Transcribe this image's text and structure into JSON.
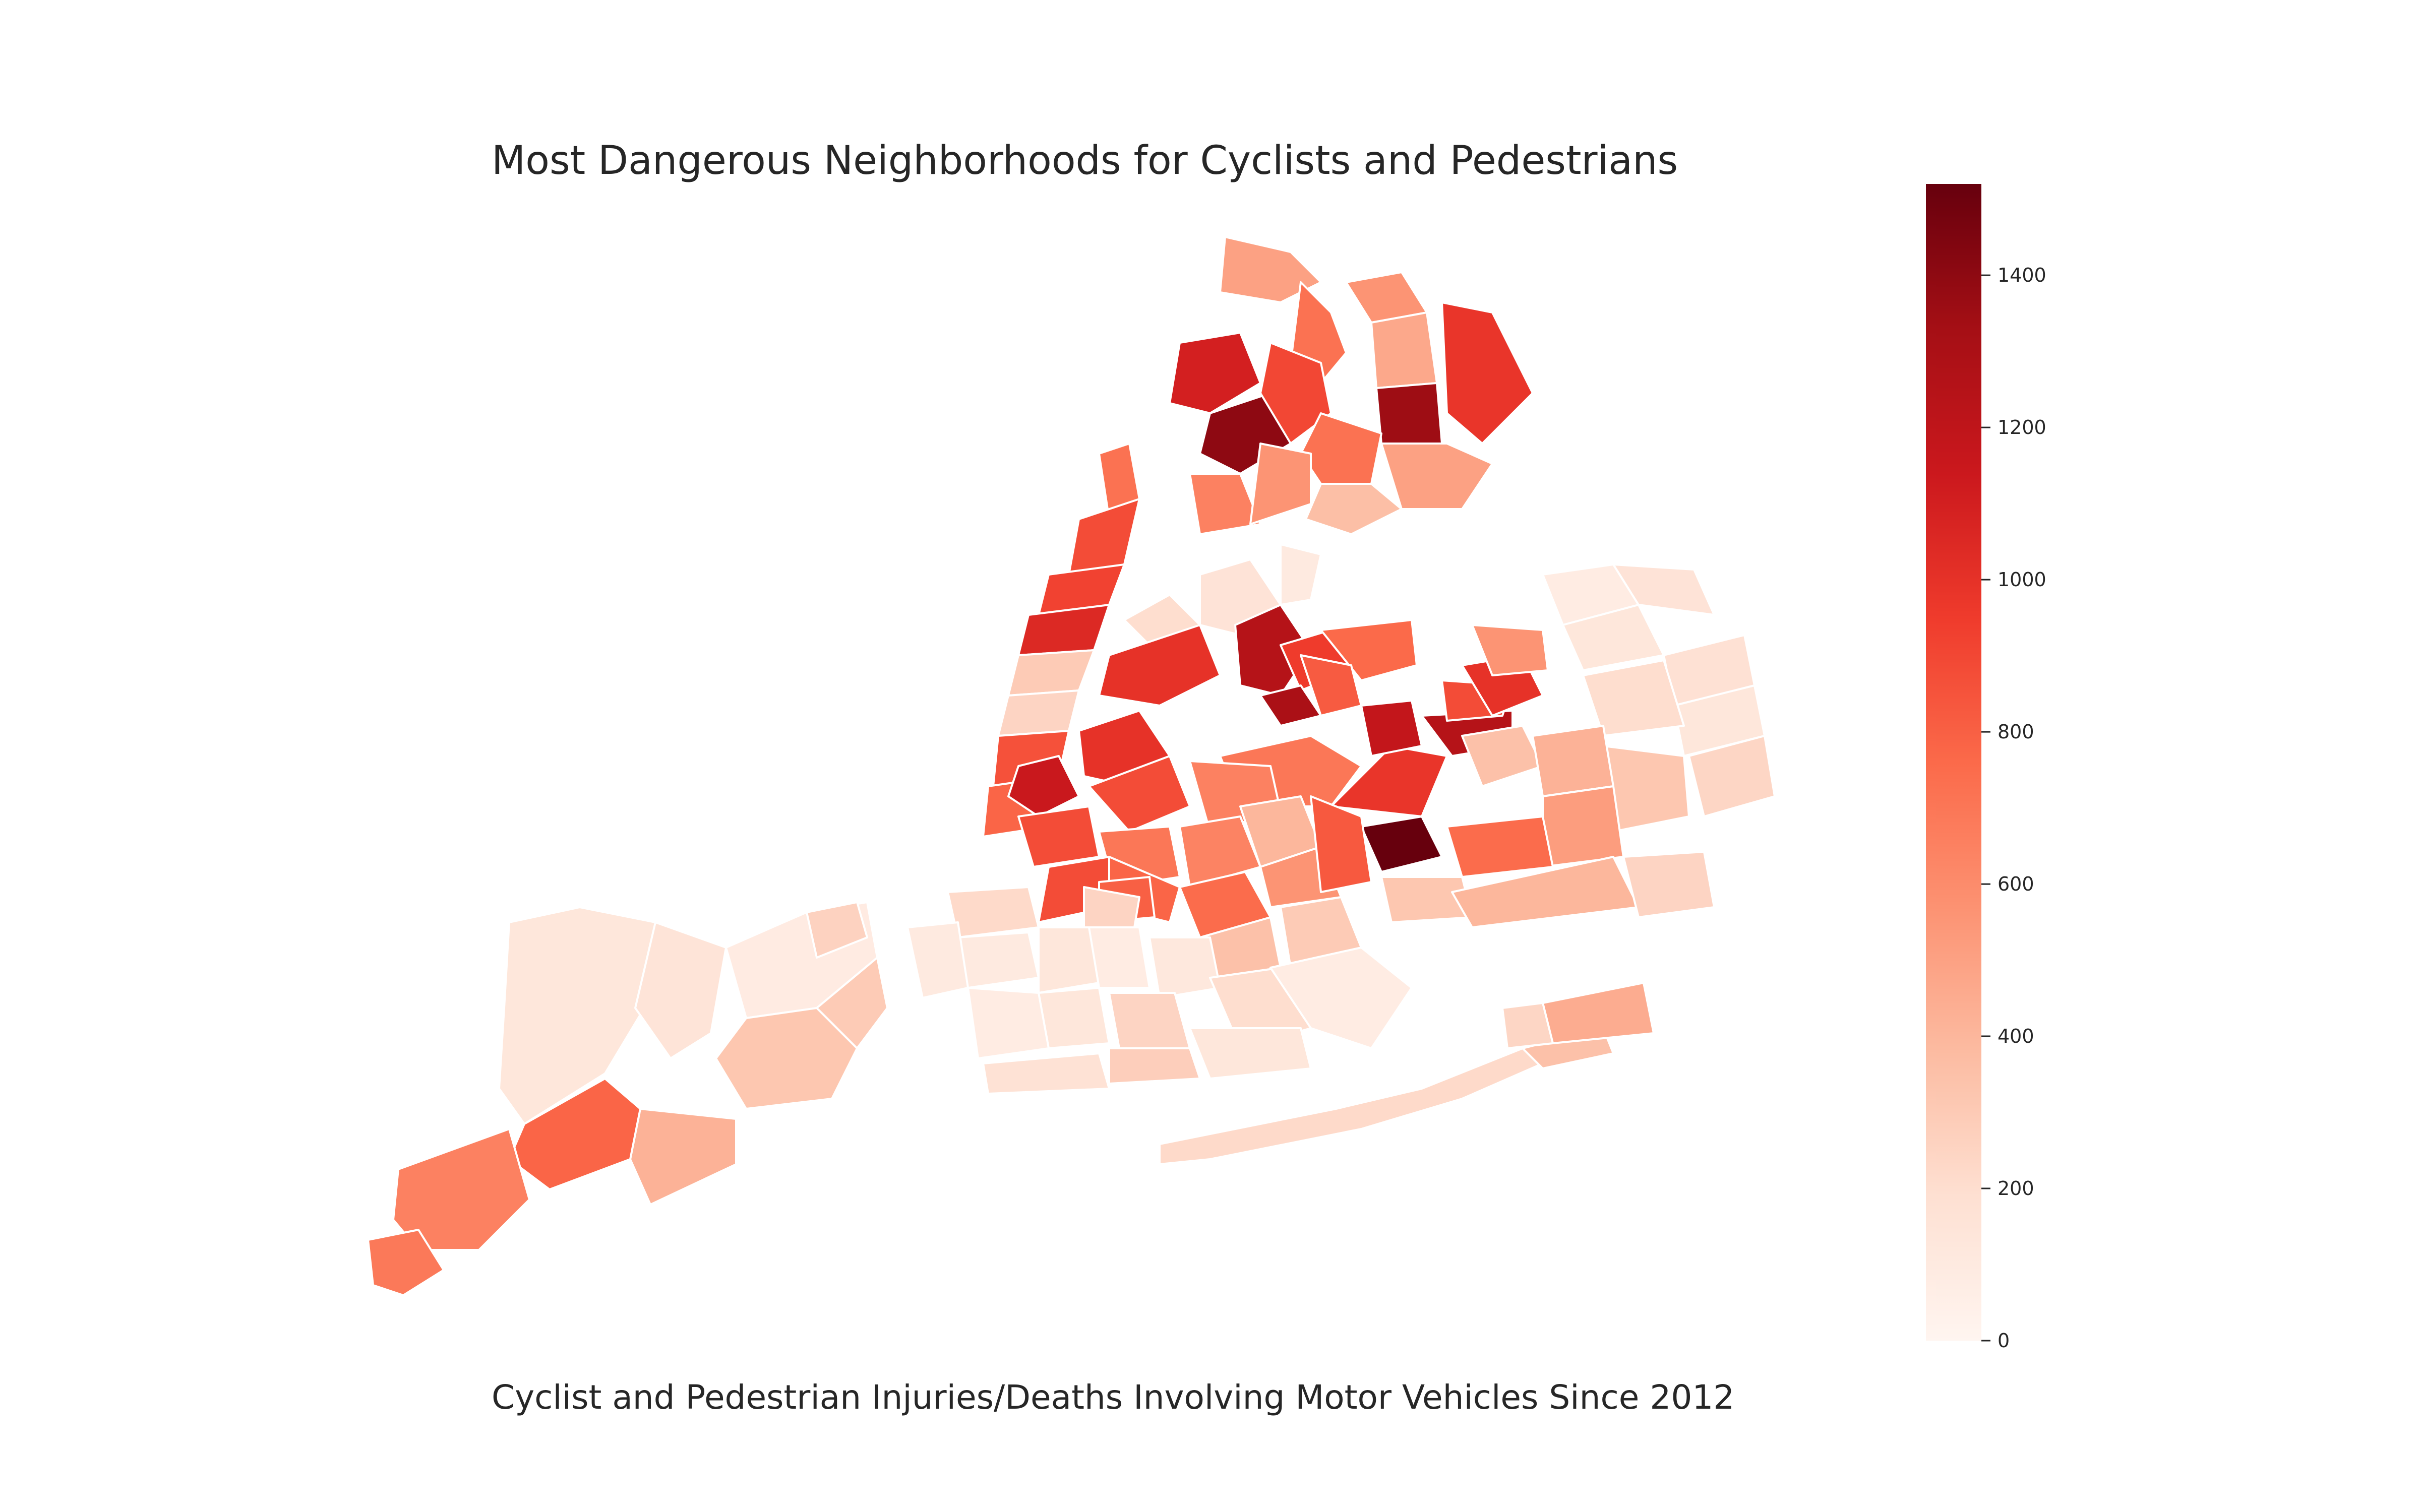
{
  "title": "Most Dangerous Neighborhoods for Cyclists and Pedestrians",
  "caption": "Cyclist and Pedestrian Injuries/Deaths Involving Motor Vehicles Since 2012",
  "colors": {
    "scale_low": "#fff5f0",
    "scale_mid": "#fb6a4a",
    "scale_high": "#67000d",
    "region_edge": "#ffffff"
  },
  "colorbar": {
    "min": 0,
    "max": 1520,
    "ticks": [
      {
        "value": 0,
        "label": "0"
      },
      {
        "value": 200,
        "label": "200"
      },
      {
        "value": 400,
        "label": "400"
      },
      {
        "value": 600,
        "label": "600"
      },
      {
        "value": 800,
        "label": "800"
      },
      {
        "value": 1000,
        "label": "1000"
      },
      {
        "value": 1200,
        "label": "1200"
      },
      {
        "value": 1400,
        "label": "1400"
      }
    ]
  },
  "map_data": {
    "type": "choropleth",
    "metric_range": [
      0,
      1520
    ],
    "regions": [
      {
        "value": 130
      },
      {
        "value": 150
      },
      {
        "value": 90
      },
      {
        "value": 260
      },
      {
        "value": 320
      },
      {
        "value": 300
      },
      {
        "value": 420
      },
      {
        "value": 780
      },
      {
        "value": 650
      },
      {
        "value": 690
      },
      {
        "value": 500
      },
      {
        "value": 720
      },
      {
        "value": 560
      },
      {
        "value": 470
      },
      {
        "value": 1350
      },
      {
        "value": 980
      },
      {
        "value": 1100
      },
      {
        "value": 1400
      },
      {
        "value": 900
      },
      {
        "value": 720
      },
      {
        "value": 650
      },
      {
        "value": 360
      },
      {
        "value": 500
      },
      {
        "value": 560
      },
      {
        "value": 720
      },
      {
        "value": 880
      },
      {
        "value": 920
      },
      {
        "value": 1050
      },
      {
        "value": 300
      },
      {
        "value": 250
      },
      {
        "value": 860
      },
      {
        "value": 780
      },
      {
        "value": 200
      },
      {
        "value": 160
      },
      {
        "value": 100
      },
      {
        "value": 1000
      },
      {
        "value": 1250
      },
      {
        "value": 950
      },
      {
        "value": 760
      },
      {
        "value": 1300
      },
      {
        "value": 820
      },
      {
        "value": 700
      },
      {
        "value": 980
      },
      {
        "value": 1180
      },
      {
        "value": 1250
      },
      {
        "value": 880
      },
      {
        "value": 1000
      },
      {
        "value": 560
      },
      {
        "value": 350
      },
      {
        "value": 1520
      },
      {
        "value": 1150
      },
      {
        "value": 1000
      },
      {
        "value": 880
      },
      {
        "value": 650
      },
      {
        "value": 880
      },
      {
        "value": 700
      },
      {
        "value": 640
      },
      {
        "value": 400
      },
      {
        "value": 560
      },
      {
        "value": 830
      },
      {
        "value": 880
      },
      {
        "value": 780
      },
      {
        "value": 800
      },
      {
        "value": 250
      },
      {
        "value": 750
      },
      {
        "value": 350
      },
      {
        "value": 300
      },
      {
        "value": 220
      },
      {
        "value": 100
      },
      {
        "value": 130
      },
      {
        "value": 80
      },
      {
        "value": 120
      },
      {
        "value": 200
      },
      {
        "value": 80
      },
      {
        "value": 100
      },
      {
        "value": 130
      },
      {
        "value": 250
      },
      {
        "value": 80
      },
      {
        "value": 170
      },
      {
        "value": 280
      },
      {
        "value": 130
      },
      {
        "value": 80
      },
      {
        "value": 130
      },
      {
        "value": 160
      },
      {
        "value": 180
      },
      {
        "value": 130
      },
      {
        "value": 200
      },
      {
        "value": 320
      },
      {
        "value": 240
      },
      {
        "value": 420
      },
      {
        "value": 520
      },
      {
        "value": 750
      },
      {
        "value": 320
      },
      {
        "value": 400
      },
      {
        "value": 250
      },
      {
        "value": 220
      },
      {
        "value": 350
      },
      {
        "value": 450
      },
      {
        "value": 240
      }
    ]
  }
}
